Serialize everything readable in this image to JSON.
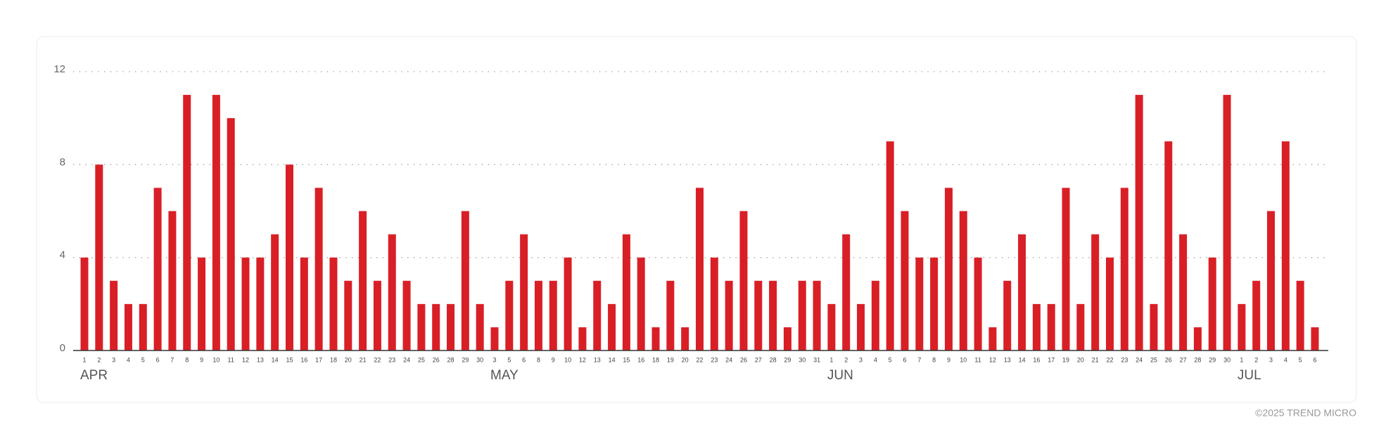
{
  "chart_data": {
    "type": "bar",
    "color": "#d91f26",
    "ylim": [
      0,
      12
    ],
    "yticks": [
      0,
      4,
      8,
      12
    ],
    "grid": true,
    "groups": [
      {
        "label": "APR",
        "categories": [
          "1",
          "2",
          "3",
          "4",
          "5",
          "6",
          "7",
          "8",
          "9",
          "10",
          "11",
          "12",
          "13",
          "14",
          "15",
          "16",
          "17",
          "18",
          "20",
          "21",
          "22",
          "23",
          "24",
          "25",
          "26",
          "28",
          "29",
          "30"
        ],
        "values": [
          4,
          8,
          3,
          2,
          2,
          7,
          6,
          11,
          4,
          11,
          10,
          4,
          4,
          5,
          8,
          4,
          7,
          4,
          3,
          6,
          3,
          5,
          3,
          2,
          2,
          2,
          6,
          2
        ]
      },
      {
        "label": "MAY",
        "categories": [
          "3",
          "5",
          "6",
          "8",
          "9",
          "10",
          "12",
          "13",
          "14",
          "15",
          "16",
          "18",
          "19",
          "20",
          "22",
          "23",
          "24",
          "26",
          "27",
          "28",
          "29",
          "30",
          "31"
        ],
        "values": [
          1,
          3,
          5,
          3,
          3,
          4,
          1,
          3,
          2,
          5,
          4,
          1,
          3,
          1,
          7,
          4,
          3,
          6,
          3,
          3,
          1,
          3,
          3
        ]
      },
      {
        "label": "JUN",
        "categories": [
          "1",
          "2",
          "3",
          "4",
          "5",
          "6",
          "7",
          "8",
          "9",
          "10",
          "11",
          "12",
          "13",
          "14",
          "16",
          "17",
          "19",
          "20",
          "21",
          "22",
          "23",
          "24",
          "25",
          "26",
          "27",
          "28",
          "29",
          "30"
        ],
        "values": [
          2,
          5,
          2,
          3,
          9,
          6,
          4,
          4,
          7,
          6,
          4,
          1,
          3,
          5,
          2,
          2,
          7,
          2,
          5,
          4,
          7,
          11,
          2,
          9,
          5,
          1,
          4,
          11
        ]
      },
      {
        "label": "JUL",
        "categories": [
          "1",
          "2",
          "3",
          "4",
          "5",
          "6"
        ],
        "values": [
          2,
          3,
          6,
          9,
          3,
          1
        ]
      }
    ]
  },
  "footer": "©2025 TREND MICRO"
}
